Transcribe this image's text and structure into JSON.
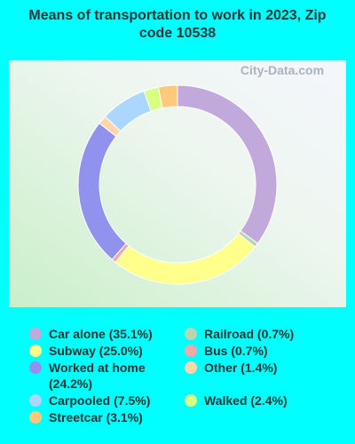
{
  "chart_data": {
    "type": "donut",
    "title": "Means of transportation to work in 2023, Zip code 10538",
    "watermark": "City-Data.com",
    "categories": [
      "Car alone",
      "Railroad",
      "Subway",
      "Bus",
      "Worked at home",
      "Other",
      "Carpooled",
      "Walked",
      "Streetcar"
    ],
    "values": [
      35.1,
      0.7,
      25.0,
      0.7,
      24.2,
      1.4,
      7.5,
      2.4,
      3.1
    ],
    "value_labels": [
      "(35.1%)",
      "(0.7%)",
      "(25.0%)",
      "(0.7%)",
      "(24.2%)",
      "(1.4%)",
      "(7.5%)",
      "(2.4%)",
      "(3.1%)"
    ],
    "colors": [
      "#c1a9dc",
      "#b9d6b0",
      "#ffff8c",
      "#f0a9a9",
      "#9191ee",
      "#ffd6aa",
      "#aad6ff",
      "#d8ff84",
      "#ffc97c"
    ]
  }
}
